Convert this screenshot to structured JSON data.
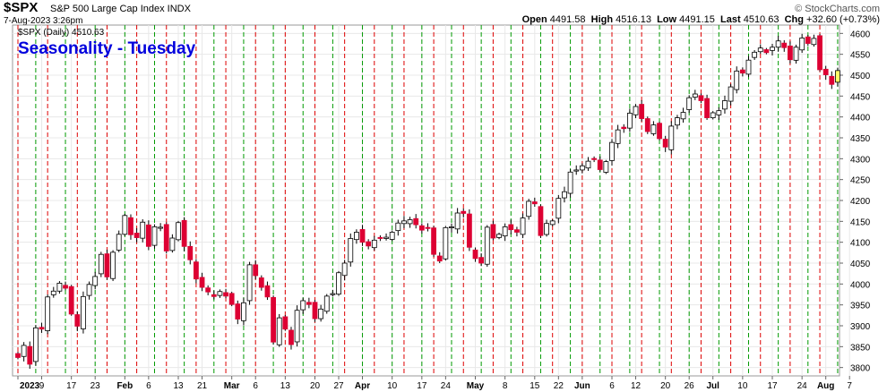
{
  "header": {
    "symbol": "$SPX",
    "description": "S&P 500 Large Cap Index INDX",
    "date": "7-Aug-2023 3:26pm",
    "brand": "© StockCharts.com",
    "open_label": "Open",
    "open": "4491.58",
    "high_label": "High",
    "high": "4516.13",
    "low_label": "Low",
    "low": "4491.15",
    "last_label": "Last",
    "last": "4510.63",
    "chg_label": "Chg",
    "chg": "+32.60 (+0.73%)",
    "legend": "$SPX (Daily) 4510.63"
  },
  "colors": {
    "up_fill": "#ffffff",
    "down_fill": "#dd0033",
    "candle_edge": "#000000",
    "last_fill": "#ffff66",
    "title": "#0000dd",
    "red_vline": "#dd0000",
    "green_vline": "#009900",
    "grid": "#e8e8e8"
  },
  "chart_data": {
    "type": "candlestick",
    "title": "Seasonality - Tuesday",
    "y_ticks": [
      3800,
      3850,
      3900,
      3950,
      4000,
      4050,
      4100,
      4150,
      4200,
      4250,
      4300,
      4350,
      4400,
      4450,
      4500,
      4550,
      4600
    ],
    "ylim": [
      3780,
      4620
    ],
    "x_ticks": [
      "2023",
      "9",
      "17",
      "23",
      "Feb",
      "6",
      "13",
      "21",
      "Mar",
      "6",
      "13",
      "20",
      "27",
      "Apr",
      "10",
      "17",
      "24",
      "May",
      "8",
      "15",
      "22",
      "Jun",
      "6",
      "12",
      "20",
      "26",
      "Jul",
      "10",
      "17",
      "24",
      "Aug",
      "7"
    ],
    "x_tick_positions": [
      0,
      4,
      9,
      13,
      18,
      22,
      27,
      31,
      36,
      40,
      45,
      50,
      54,
      58,
      63,
      68,
      72,
      77,
      82,
      87,
      91,
      95,
      100,
      104,
      109,
      113,
      117,
      122,
      127,
      132,
      136,
      140
    ],
    "annotations": [
      "red dashed vertical lines mark Tuesdays",
      "green dashed vertical lines mark Fridays"
    ],
    "closes": [
      3824,
      3853,
      3808,
      3895,
      3892,
      3969,
      3983,
      4002,
      3990,
      3928,
      3899,
      3970,
      3999,
      4018,
      4071,
      4017,
      4076,
      4119,
      4164,
      4118,
      4111,
      4148,
      4090,
      4137,
      4136,
      4079,
      4110,
      4147,
      4090,
      4058,
      4012,
      3992,
      3981,
      3970,
      3982,
      3971,
      3951,
      3916,
      3955,
      4046,
      4020,
      3992,
      3969,
      3861,
      3919,
      3892,
      3855,
      3937,
      3960,
      3951,
      3917,
      3940,
      3971,
      3977,
      4027,
      4050,
      4109,
      4124,
      4100,
      4091,
      4105,
      4109,
      4112,
      4124,
      4146,
      4151,
      4154,
      4142,
      4129,
      4133,
      4071,
      4055,
      4135,
      4137,
      4170,
      4169,
      4088,
      4061,
      4050,
      4136,
      4110,
      4119,
      4137,
      4130,
      4124,
      4158,
      4198,
      4192,
      4116,
      4145,
      4151,
      4205,
      4221,
      4268,
      4273,
      4283,
      4294,
      4298,
      4274,
      4293,
      4339,
      4369,
      4372,
      4409,
      4425,
      4396,
      4365,
      4381,
      4348,
      4328,
      4378,
      4398,
      4411,
      4446,
      4455,
      4439,
      4398,
      4410,
      4415,
      4439,
      4472,
      4510,
      4505,
      4536,
      4555,
      4565,
      4554,
      4567,
      4582,
      4566,
      4537,
      4567,
      4589,
      4576,
      4588,
      4513,
      4501,
      4478,
      4511
    ]
  }
}
